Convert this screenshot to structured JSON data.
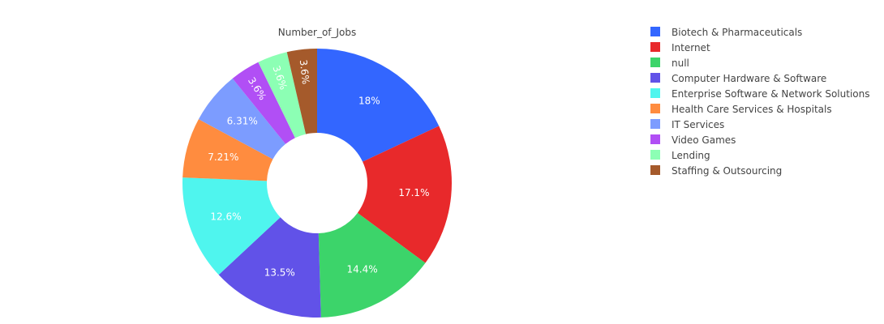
{
  "chart_data": {
    "type": "pie",
    "hole": true,
    "title": "Number_of_Jobs",
    "legend_position": "top-right",
    "categories": [
      "Biotech & Pharmaceuticals",
      "Internet",
      "null",
      "Computer Hardware & Software",
      "Enterprise Software & Network Solutions",
      "Health Care Services & Hospitals",
      "IT Services",
      "Video Games",
      "Lending",
      "Staffing & Outsourcing"
    ],
    "values": [
      18,
      17.1,
      14.4,
      13.5,
      12.6,
      7.21,
      6.31,
      3.6,
      3.6,
      3.6
    ],
    "labels": [
      "18%",
      "17.1%",
      "14.4%",
      "13.5%",
      "12.6%",
      "7.21%",
      "6.31%",
      "3.6%",
      "3.6%",
      "3.6%"
    ],
    "colors": [
      "#3366ff",
      "#e8292b",
      "#3cd46a",
      "#6152e8",
      "#4ff5ee",
      "#ff8c3f",
      "#7c9cff",
      "#b14ff5",
      "#8cffb4",
      "#a55a2b"
    ],
    "label_colors": [
      "#ffffff",
      "#ffffff",
      "#ffffff",
      "#ffffff",
      "#ffffff",
      "#ffffff",
      "#ffffff",
      "#ffffff",
      "#ffffff",
      "#ffffff"
    ]
  }
}
